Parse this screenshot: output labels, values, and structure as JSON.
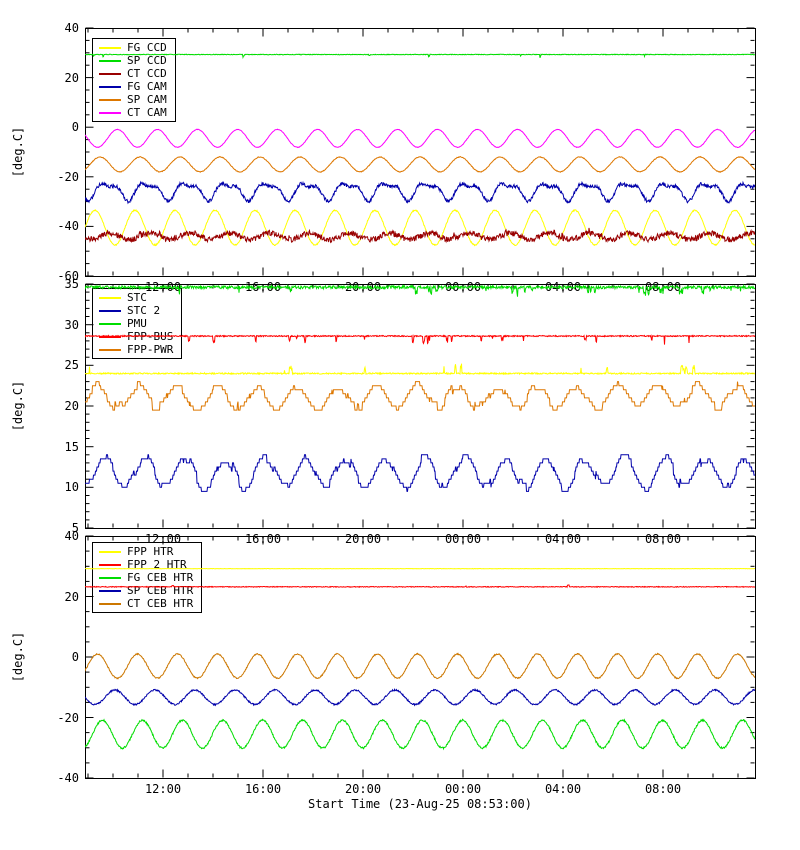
{
  "figure": {
    "background": "#ffffff",
    "axis_color": "#000000",
    "x_title": "Start Time (23-Aug-25 08:53:00)",
    "y_axis_title": "[deg.C]",
    "x_tick_labels": [
      "12:00",
      "16:00",
      "20:00",
      "00:00",
      "04:00",
      "08:00"
    ],
    "x_tick_hours": [
      3.12,
      7.12,
      11.12,
      15.12,
      19.12,
      23.12
    ],
    "x_minor_start_hour": 0.12,
    "x_span_hours": 26.8
  },
  "chart_data": [
    {
      "type": "line",
      "panel": "ccd-cam-temperatures",
      "ylim": [
        -60,
        40
      ],
      "yticks": [
        -60,
        -40,
        -20,
        0,
        20,
        40
      ],
      "ytick_labels": [
        "-60",
        "-40",
        "-20",
        "0",
        "20",
        "40"
      ],
      "ytick_minor": 5,
      "legend": [
        {
          "label": "FG CCD",
          "color": "#ffff00"
        },
        {
          "label": "SP CCD",
          "color": "#00dd00"
        },
        {
          "label": "CT CCD",
          "color": "#990000"
        },
        {
          "label": "FG CAM",
          "color": "#0000aa"
        },
        {
          "label": "SP CAM",
          "color": "#dd7700"
        },
        {
          "label": "CT CAM",
          "color": "#ff00ff"
        }
      ],
      "series": [
        {
          "name": "FG CCD",
          "color": "#ffff00",
          "kind": "sine",
          "mean": -40.5,
          "amp": 7.0,
          "period": 1.6,
          "phase": 0.0,
          "noise": 0.25,
          "seed": 11
        },
        {
          "name": "CT CCD",
          "color": "#990000",
          "kind": "fuzz",
          "mean": -44.0,
          "amp": 1.3,
          "period": 1.6,
          "phase": 0.6,
          "noise": 1.1,
          "spike_prob": 0.02,
          "spike_amp": 2.0,
          "spike_dir": 1,
          "seed": 12
        },
        {
          "name": "FG CAM",
          "color": "#0000aa",
          "kind": "jag",
          "mean": -25.5,
          "amp": 4.2,
          "period": 1.6,
          "phase": 0.5,
          "noise": 0.7,
          "seed": 13
        },
        {
          "name": "SP CAM",
          "color": "#dd7700",
          "kind": "sine",
          "mean": -15.0,
          "amp": 3.0,
          "period": 1.6,
          "phase": 0.2,
          "noise": 0.15,
          "seed": 14
        },
        {
          "name": "CT CAM",
          "color": "#ff00ff",
          "kind": "sine",
          "mean": -4.5,
          "amp": 3.6,
          "period": 1.6,
          "phase": 0.9,
          "noise": 0.1,
          "seed": 15
        },
        {
          "name": "SP CCD",
          "color": "#00dd00",
          "kind": "flat",
          "mean": 29.3,
          "noise": 0.12,
          "spike_prob": 0.015,
          "spike_amp": 1.6,
          "spike_dir": -1,
          "seed": 16
        }
      ]
    },
    {
      "type": "line",
      "panel": "stc-pmu-fpp-temperatures",
      "ylim": [
        5,
        35
      ],
      "yticks": [
        5,
        10,
        15,
        20,
        25,
        30,
        35
      ],
      "ytick_labels": [
        "5",
        "10",
        "15",
        "20",
        "25",
        "30",
        "35"
      ],
      "ytick_minor": 1,
      "legend": [
        {
          "label": "STC",
          "color": "#ffff00"
        },
        {
          "label": "STC 2",
          "color": "#0000aa"
        },
        {
          "label": "PMU",
          "color": "#00dd00"
        },
        {
          "label": "FPP-BUS",
          "color": "#ff0000"
        },
        {
          "label": "FPP-PWR",
          "color": "#dd7700"
        }
      ],
      "series": [
        {
          "name": "STC",
          "color": "#ffff00",
          "kind": "flat",
          "mean": 24.0,
          "noise": 0.08,
          "spike_prob": 0.02,
          "spike_amp": 1.6,
          "spike_dir": 1,
          "seed": 21
        },
        {
          "name": "STC 2",
          "color": "#0000aa",
          "kind": "qsine",
          "mean": 11.8,
          "amp": 1.8,
          "period": 1.6,
          "phase": 0.4,
          "noise": 0.6,
          "step": 0.5,
          "hold": 0.28,
          "seed": 22
        },
        {
          "name": "PMU",
          "color": "#00dd00",
          "kind": "flat",
          "mean": 34.6,
          "noise": 0.18,
          "spike_prob": 0.05,
          "spike_amp": 1.2,
          "spike_dir": -1,
          "spike_after": 13.0,
          "seed": 23
        },
        {
          "name": "FPP-BUS",
          "color": "#ff0000",
          "kind": "flat",
          "mean": 28.6,
          "noise": 0.07,
          "spike_prob": 0.035,
          "spike_amp": 1.1,
          "spike_dir": -1,
          "seed": 24
        },
        {
          "name": "FPP-PWR",
          "color": "#dd7700",
          "kind": "qsine",
          "mean": 21.1,
          "amp": 1.3,
          "period": 1.6,
          "phase": 0.1,
          "noise": 0.5,
          "step": 0.5,
          "hold": 0.3,
          "spike_prob": 0.004,
          "spike_amp": 2.6,
          "spike_dir": 1,
          "seed": 25
        }
      ]
    },
    {
      "type": "line",
      "panel": "heater-temperatures",
      "ylim": [
        -40,
        40
      ],
      "yticks": [
        -40,
        -20,
        0,
        20,
        40
      ],
      "ytick_labels": [
        "-40",
        "-20",
        "0",
        "20",
        "40"
      ],
      "ytick_minor": 5,
      "legend": [
        {
          "label": "FPP HTR",
          "color": "#ffff00"
        },
        {
          "label": "FPP 2 HTR",
          "color": "#ff0000"
        },
        {
          "label": "FG CEB HTR",
          "color": "#00dd00"
        },
        {
          "label": "SP CEB HTR",
          "color": "#0000aa"
        },
        {
          "label": "CT CEB HTR",
          "color": "#cc7700"
        }
      ],
      "series": [
        {
          "name": "FPP HTR",
          "color": "#ffff00",
          "kind": "flat",
          "mean": 29.2,
          "noise": 0.06,
          "seed": 31
        },
        {
          "name": "FPP 2 HTR",
          "color": "#ff0000",
          "kind": "flat",
          "mean": 23.2,
          "noise": 0.12,
          "spike_prob": 0.006,
          "spike_amp": 0.8,
          "spike_dir": 1,
          "seed": 32
        },
        {
          "name": "FG CEB HTR",
          "color": "#00dd00",
          "kind": "sine",
          "mean": -25.5,
          "amp": 4.6,
          "period": 1.6,
          "phase": 0.3,
          "noise": 0.3,
          "seed": 33
        },
        {
          "name": "SP CEB HTR",
          "color": "#0000aa",
          "kind": "sine",
          "mean": -13.3,
          "amp": 2.4,
          "period": 1.6,
          "phase": 0.8,
          "noise": 0.25,
          "seed": 34
        },
        {
          "name": "CT CEB HTR",
          "color": "#cc7700",
          "kind": "sine",
          "mean": -3.0,
          "amp": 4.0,
          "period": 1.6,
          "phase": 0.1,
          "noise": 0.2,
          "seed": 35
        }
      ]
    }
  ]
}
